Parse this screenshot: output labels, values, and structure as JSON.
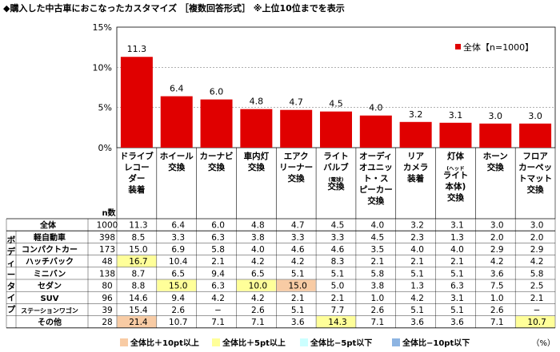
{
  "header": {
    "title": "◆購入した中古車におこなったカスタマイズ ［複数回答形式］ ※上位10位までを表示"
  },
  "chart_data": {
    "type": "bar",
    "y_ticks": [
      "15%",
      "10%",
      "5%",
      "0%"
    ],
    "ylim": [
      0,
      15
    ],
    "legend": "全体【n=1000】",
    "legend_position": "top-right",
    "bar_color": "#e00000",
    "categories": [
      [
        "ドライブ",
        "レコー",
        "ダー",
        "装着"
      ],
      [
        "ホイール",
        "交換"
      ],
      [
        "カーナビ",
        "交換"
      ],
      [
        "車内灯",
        "交換"
      ],
      [
        "エアク",
        "リーナー",
        "交換"
      ],
      [
        "ライト",
        "バルブ",
        "(電球)",
        "交換"
      ],
      [
        "オーディ",
        "オユニッ",
        "ト・ス",
        "ピーカー",
        "交換"
      ],
      [
        "リア",
        "カメラ",
        "装着"
      ],
      [
        "灯体",
        "(ヘッド",
        "ライト",
        "本体)",
        "交換"
      ],
      [
        "ホーン",
        "交換"
      ],
      [
        "フロア",
        "カーペッ",
        "トマット",
        "交換"
      ]
    ],
    "series": [
      {
        "name": "全体【n=1000】",
        "values": [
          11.3,
          6.4,
          6.0,
          4.8,
          4.7,
          4.5,
          4.0,
          3.2,
          3.1,
          3.0,
          3.0
        ]
      }
    ],
    "value_labels": [
      "11.3",
      "6.4",
      "6.0",
      "4.8",
      "4.7",
      "4.5",
      "4.0",
      "3.2",
      "3.1",
      "3.0",
      "3.0"
    ]
  },
  "table": {
    "n_header": "n数",
    "side_label": [
      "ボ",
      "デ",
      "ィ",
      "ー",
      "タ",
      "イ",
      "プ"
    ],
    "total_row": {
      "label": "全体",
      "n": "1000",
      "values": [
        "11.3",
        "6.4",
        "6.0",
        "4.8",
        "4.7",
        "4.5",
        "4.0",
        "3.2",
        "3.1",
        "3.0",
        "3.0"
      ]
    },
    "rows": [
      {
        "label": "軽自動車",
        "n": "398",
        "values": [
          "8.5",
          "3.3",
          "6.3",
          "3.8",
          "3.3",
          "3.3",
          "4.5",
          "2.3",
          "1.3",
          "2.0",
          "2.0"
        ],
        "hl": [
          0,
          0,
          0,
          0,
          0,
          0,
          0,
          0,
          0,
          0,
          0
        ]
      },
      {
        "label": "コンパクトカー",
        "n": "173",
        "values": [
          "15.0",
          "6.9",
          "5.8",
          "4.0",
          "4.6",
          "4.6",
          "3.5",
          "4.0",
          "4.0",
          "2.9",
          "2.9"
        ],
        "hl": [
          0,
          0,
          0,
          0,
          0,
          0,
          0,
          0,
          0,
          0,
          0
        ]
      },
      {
        "label": "ハッチバック",
        "n": "48",
        "values": [
          "16.7",
          "10.4",
          "2.1",
          "4.2",
          "4.2",
          "8.3",
          "2.1",
          "2.1",
          "2.1",
          "4.2",
          "4.2"
        ],
        "hl": [
          2,
          0,
          0,
          0,
          0,
          0,
          0,
          0,
          0,
          0,
          0
        ]
      },
      {
        "label": "ミニバン",
        "n": "138",
        "values": [
          "8.7",
          "6.5",
          "9.4",
          "6.5",
          "5.1",
          "5.1",
          "5.8",
          "5.1",
          "5.1",
          "3.6",
          "5.8"
        ],
        "hl": [
          0,
          0,
          0,
          0,
          0,
          0,
          0,
          0,
          0,
          0,
          0
        ]
      },
      {
        "label": "セダン",
        "n": "80",
        "values": [
          "8.8",
          "15.0",
          "6.3",
          "10.0",
          "15.0",
          "5.0",
          "3.8",
          "1.3",
          "6.3",
          "7.5",
          "2.5"
        ],
        "hl": [
          0,
          2,
          0,
          2,
          1,
          0,
          0,
          0,
          0,
          0,
          0
        ]
      },
      {
        "label": "SUV",
        "n": "96",
        "values": [
          "14.6",
          "9.4",
          "4.2",
          "4.2",
          "2.1",
          "2.1",
          "1.0",
          "4.2",
          "3.1",
          "1.0",
          "2.1"
        ],
        "hl": [
          0,
          0,
          0,
          0,
          0,
          0,
          0,
          0,
          0,
          0,
          0
        ]
      },
      {
        "label": "ステーションワゴン",
        "n": "39",
        "values": [
          "15.4",
          "2.6",
          "−",
          "2.6",
          "5.1",
          "7.7",
          "2.6",
          "5.1",
          "5.1",
          "2.6",
          "−"
        ],
        "hl": [
          0,
          0,
          0,
          0,
          0,
          0,
          0,
          0,
          0,
          0,
          0
        ]
      },
      {
        "label": "その他",
        "n": "28",
        "values": [
          "21.4",
          "10.7",
          "7.1",
          "7.1",
          "3.6",
          "14.3",
          "7.1",
          "3.6",
          "3.6",
          "7.1",
          "10.7"
        ],
        "hl": [
          1,
          0,
          0,
          0,
          0,
          2,
          0,
          0,
          0,
          0,
          2
        ]
      }
    ]
  },
  "footer": {
    "legend": [
      {
        "label": "全体比＋10pt以上",
        "color": "#f8cba4"
      },
      {
        "label": "全体比＋5pt以上",
        "color": "#ffff99"
      },
      {
        "label": "全体比−5pt以下",
        "color": "#ccffff"
      },
      {
        "label": "全体比−10pt以下",
        "color": "#8db4e2"
      }
    ],
    "unit": "（%）"
  }
}
